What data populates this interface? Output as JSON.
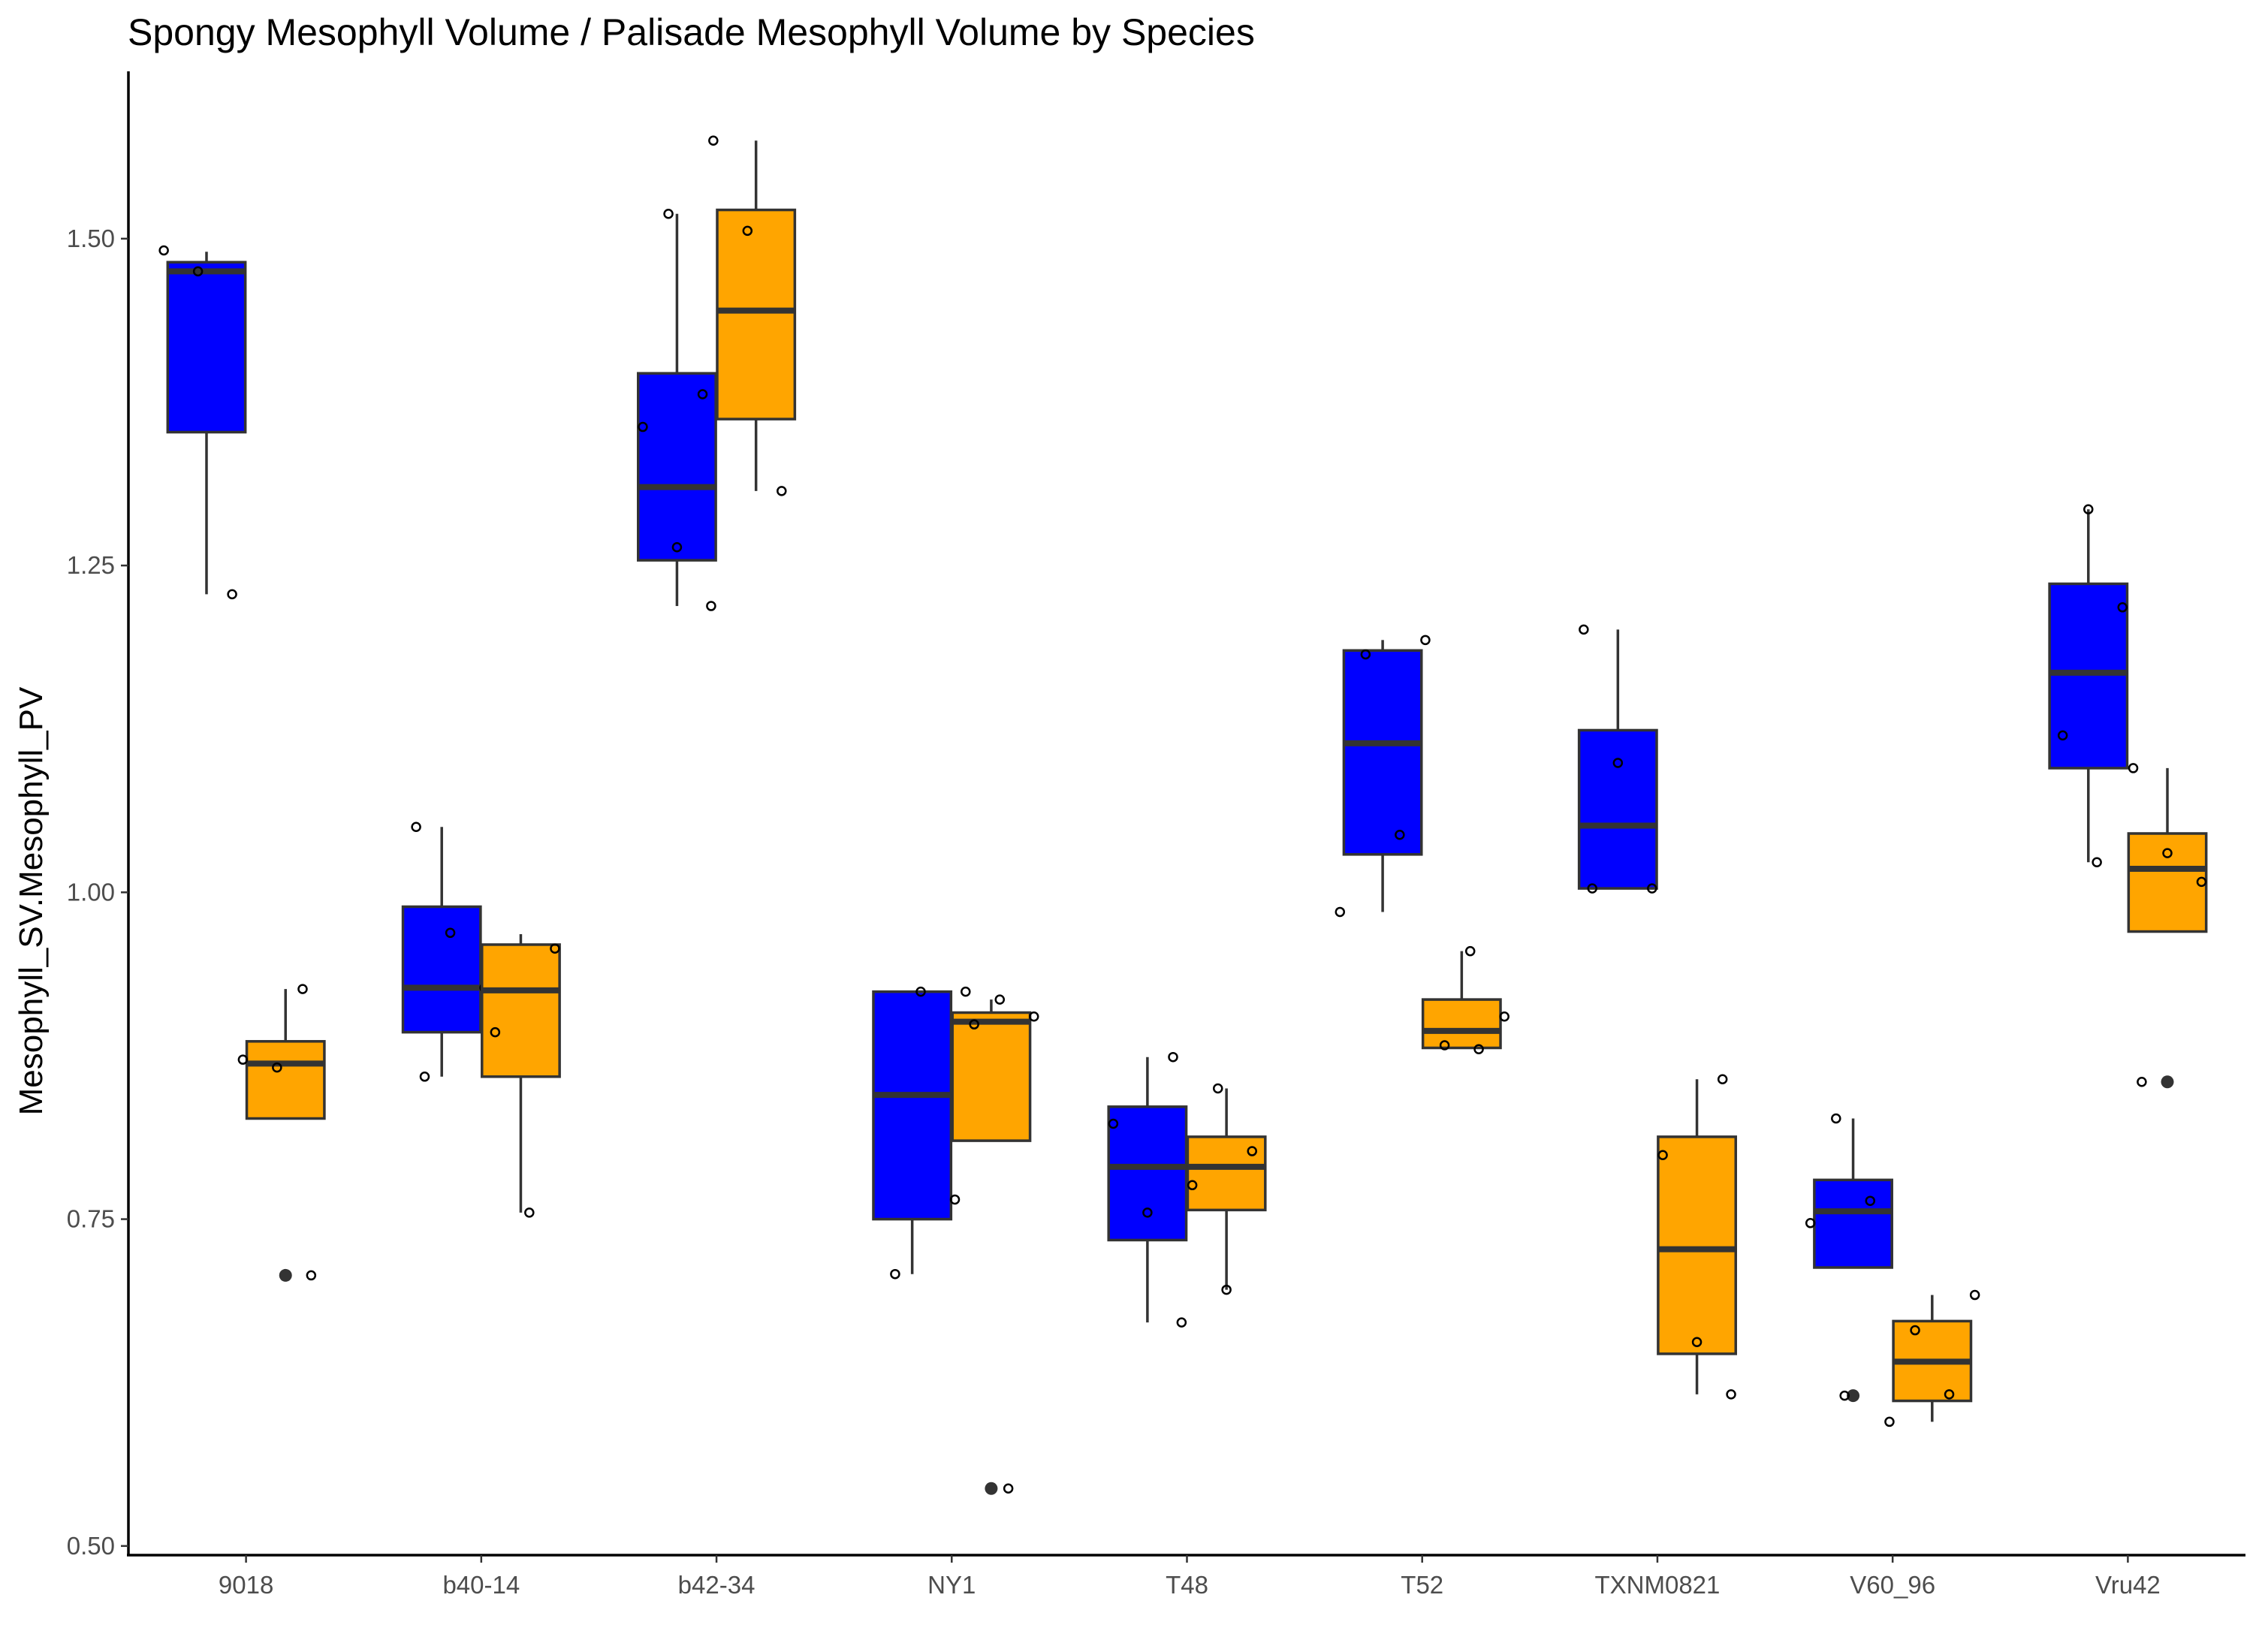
{
  "chart_data": {
    "type": "boxplot",
    "title": "Spongy Mesophyll Volume / Palisade Mesophyll Volume by Species",
    "xlabel": "",
    "ylabel": "Mesophyll_SV.Mesophyll_PV",
    "ylim": [
      0.493,
      1.628
    ],
    "yticks": [
      0.5,
      0.75,
      1.0,
      1.25,
      1.5
    ],
    "ytick_labels": [
      "0.50",
      "0.75",
      "1.00",
      "1.25",
      "1.50"
    ],
    "categories": [
      "9018",
      "b40-14",
      "b42-34",
      "NY1",
      "T48",
      "T52",
      "TXNM0821",
      "V60_96",
      "Vru42"
    ],
    "grid": false,
    "legend": "none",
    "series_colors": [
      "#0000ff",
      "#ffa500"
    ],
    "groups": [
      {
        "category": "9018",
        "boxes": [
          {
            "series": 0,
            "q1": 1.352,
            "median": 1.475,
            "q3": 1.482,
            "whisker_low": 1.228,
            "whisker_high": 1.49,
            "outliers": [],
            "points": [
              1.491,
              1.475,
              1.228
            ]
          },
          {
            "series": 1,
            "q1": 0.827,
            "median": 0.869,
            "q3": 0.886,
            "whisker_low": 0.827,
            "whisker_high": 0.926,
            "outliers": [
              0.707
            ],
            "points": [
              0.926,
              0.872,
              0.866,
              0.707
            ]
          }
        ]
      },
      {
        "category": "b40-14",
        "boxes": [
          {
            "series": 0,
            "q1": 0.893,
            "median": 0.927,
            "q3": 0.989,
            "whisker_low": 0.859,
            "whisker_high": 1.05,
            "outliers": [],
            "points": [
              1.05,
              0.969,
              0.927,
              0.859
            ]
          },
          {
            "series": 1,
            "q1": 0.859,
            "median": 0.925,
            "q3": 0.96,
            "whisker_low": 0.755,
            "whisker_high": 0.968,
            "outliers": [],
            "points": [
              0.957,
              0.893,
              0.755
            ]
          }
        ]
      },
      {
        "category": "b42-34",
        "boxes": [
          {
            "series": 0,
            "q1": 1.254,
            "median": 1.31,
            "q3": 1.397,
            "whisker_low": 1.219,
            "whisker_high": 1.519,
            "outliers": [],
            "points": [
              1.519,
              1.381,
              1.356,
              1.264,
              1.219
            ]
          },
          {
            "series": 1,
            "q1": 1.362,
            "median": 1.445,
            "q3": 1.522,
            "whisker_low": 1.307,
            "whisker_high": 1.575,
            "outliers": [],
            "points": [
              1.575,
              1.506,
              1.307
            ]
          }
        ]
      },
      {
        "category": "NY1",
        "boxes": [
          {
            "series": 0,
            "q1": 0.75,
            "median": 0.845,
            "q3": 0.924,
            "whisker_low": 0.708,
            "whisker_high": 0.924,
            "outliers": [],
            "points": [
              0.924,
              0.765,
              0.708
            ]
          },
          {
            "series": 1,
            "q1": 0.81,
            "median": 0.901,
            "q3": 0.908,
            "whisker_low": 0.81,
            "whisker_high": 0.918,
            "outliers": [
              0.544
            ],
            "points": [
              0.924,
              0.918,
              0.905,
              0.899,
              0.544
            ]
          }
        ]
      },
      {
        "category": "T48",
        "boxes": [
          {
            "series": 0,
            "q1": 0.734,
            "median": 0.79,
            "q3": 0.836,
            "whisker_low": 0.671,
            "whisker_high": 0.874,
            "outliers": [],
            "points": [
              0.874,
              0.823,
              0.755,
              0.671
            ]
          },
          {
            "series": 1,
            "q1": 0.757,
            "median": 0.79,
            "q3": 0.813,
            "whisker_low": 0.696,
            "whisker_high": 0.85,
            "outliers": [],
            "points": [
              0.85,
              0.802,
              0.776,
              0.696
            ]
          }
        ]
      },
      {
        "category": "T52",
        "boxes": [
          {
            "series": 0,
            "q1": 1.029,
            "median": 1.114,
            "q3": 1.185,
            "whisker_low": 0.985,
            "whisker_high": 1.193,
            "outliers": [],
            "points": [
              1.193,
              1.182,
              1.044,
              0.985
            ]
          },
          {
            "series": 1,
            "q1": 0.881,
            "median": 0.894,
            "q3": 0.918,
            "whisker_low": 0.881,
            "whisker_high": 0.955,
            "outliers": [],
            "points": [
              0.955,
              0.905,
              0.883,
              0.88
            ]
          }
        ]
      },
      {
        "category": "TXNM0821",
        "boxes": [
          {
            "series": 0,
            "q1": 1.003,
            "median": 1.051,
            "q3": 1.124,
            "whisker_low": 1.003,
            "whisker_high": 1.201,
            "outliers": [],
            "points": [
              1.201,
              1.099,
              1.003,
              1.003
            ]
          },
          {
            "series": 1,
            "q1": 0.647,
            "median": 0.727,
            "q3": 0.813,
            "whisker_low": 0.616,
            "whisker_high": 0.857,
            "outliers": [],
            "points": [
              0.857,
              0.799,
              0.656,
              0.616
            ]
          }
        ]
      },
      {
        "category": "V60_96",
        "boxes": [
          {
            "series": 0,
            "q1": 0.713,
            "median": 0.756,
            "q3": 0.78,
            "whisker_low": 0.713,
            "whisker_high": 0.827,
            "outliers": [
              0.615
            ],
            "points": [
              0.827,
              0.764,
              0.747,
              0.615
            ]
          },
          {
            "series": 1,
            "q1": 0.611,
            "median": 0.641,
            "q3": 0.672,
            "whisker_low": 0.595,
            "whisker_high": 0.692,
            "outliers": [],
            "points": [
              0.692,
              0.665,
              0.616,
              0.595
            ]
          }
        ]
      },
      {
        "category": "Vru42",
        "boxes": [
          {
            "series": 0,
            "q1": 1.095,
            "median": 1.168,
            "q3": 1.236,
            "whisker_low": 1.023,
            "whisker_high": 1.293,
            "outliers": [],
            "points": [
              1.293,
              1.218,
              1.12,
              1.023
            ]
          },
          {
            "series": 1,
            "q1": 0.97,
            "median": 1.018,
            "q3": 1.045,
            "whisker_low": 0.97,
            "whisker_high": 1.095,
            "outliers": [
              0.855
            ],
            "points": [
              1.095,
              1.03,
              1.008,
              0.855
            ]
          }
        ]
      }
    ]
  }
}
